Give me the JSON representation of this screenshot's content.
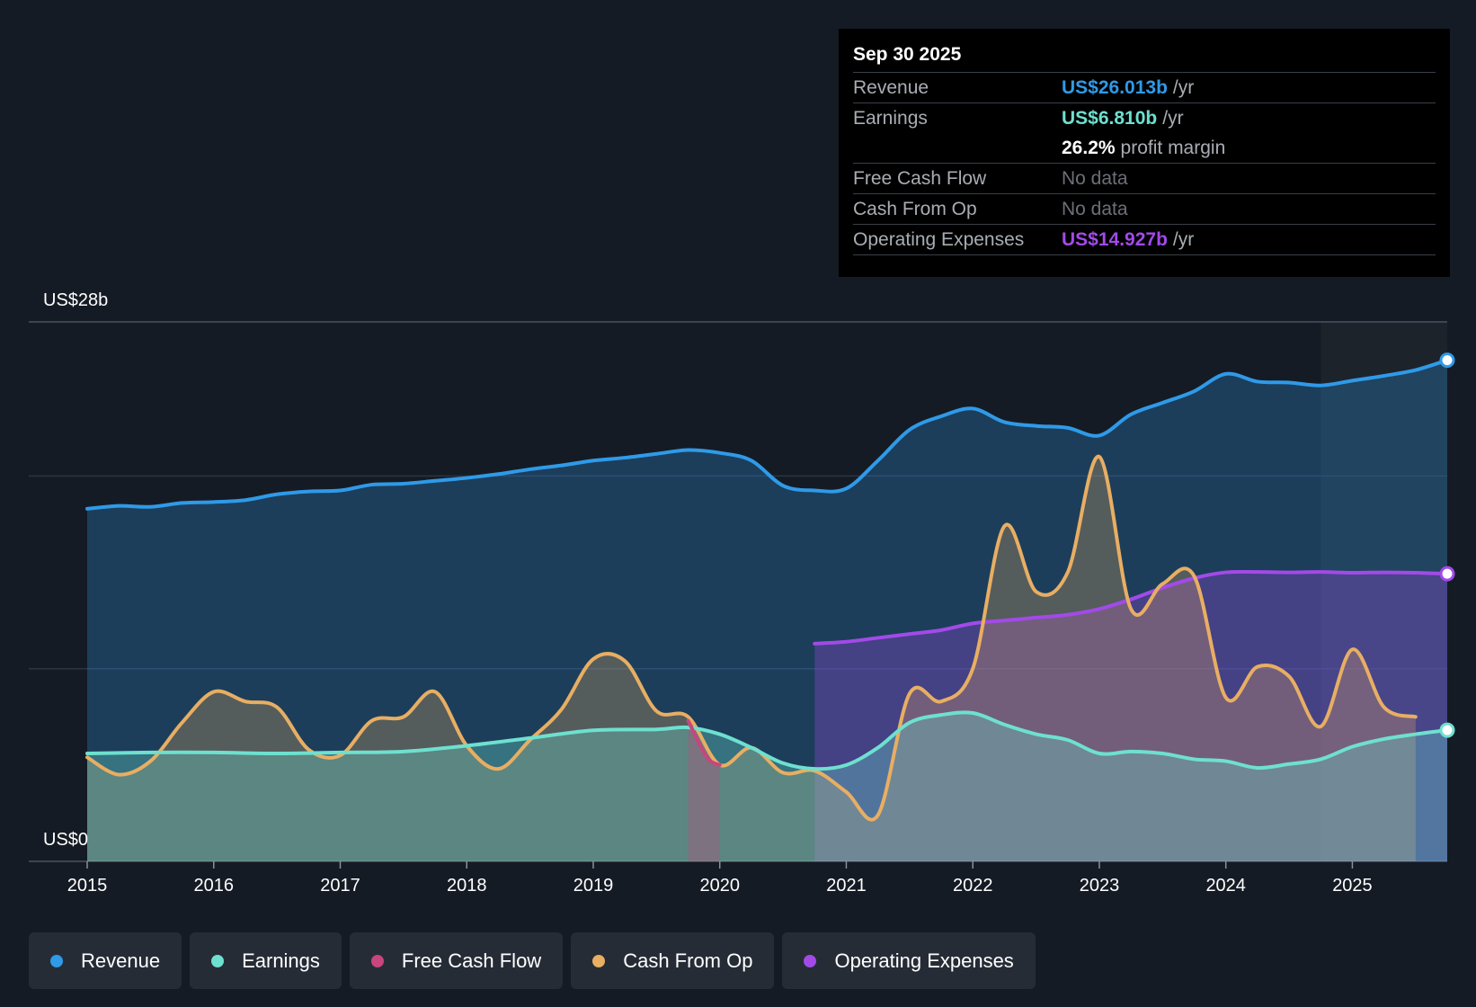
{
  "tooltip": {
    "date": "Sep 30 2025",
    "revenue_label": "Revenue",
    "revenue_value": "US$26.013b",
    "earnings_label": "Earnings",
    "earnings_value": "US$6.810b",
    "unit": "/yr",
    "margin_value": "26.2%",
    "margin_label": "profit margin",
    "fcf_label": "Free Cash Flow",
    "fcf_value": "No data",
    "cfo_label": "Cash From Op",
    "cfo_value": "No data",
    "opex_label": "Operating Expenses",
    "opex_value": "US$14.927b"
  },
  "legend": [
    {
      "label": "Revenue",
      "color": "#2f9ae8"
    },
    {
      "label": "Earnings",
      "color": "#6ee0cf"
    },
    {
      "label": "Free Cash Flow",
      "color": "#c8467d"
    },
    {
      "label": "Cash From Op",
      "color": "#e8ae62"
    },
    {
      "label": "Operating Expenses",
      "color": "#a24ae8"
    }
  ],
  "chart_data": {
    "type": "area",
    "ylabel_top": "US$28b",
    "ylabel_bottom": "US$0",
    "ylim": [
      0,
      28
    ],
    "xlim": [
      2015,
      2025.75
    ],
    "x_ticks": [
      "2015",
      "2016",
      "2017",
      "2018",
      "2019",
      "2020",
      "2021",
      "2022",
      "2023",
      "2024",
      "2025"
    ],
    "forecast_start": 2024.75,
    "series": [
      {
        "name": "Revenue",
        "color": "#2f9ae8",
        "x": [
          2015,
          2015.25,
          2015.5,
          2015.75,
          2016,
          2016.25,
          2016.5,
          2016.75,
          2017,
          2017.25,
          2017.5,
          2017.75,
          2018,
          2018.25,
          2018.5,
          2018.75,
          2019,
          2019.25,
          2019.5,
          2019.75,
          2020,
          2020.25,
          2020.5,
          2020.75,
          2021,
          2021.25,
          2021.5,
          2021.75,
          2022,
          2022.25,
          2022.5,
          2022.75,
          2023,
          2023.25,
          2023.5,
          2023.75,
          2024,
          2024.25,
          2024.5,
          2024.75,
          2025,
          2025.25,
          2025.5,
          2025.75
        ],
        "values": [
          18.3,
          18.45,
          18.4,
          18.6,
          18.65,
          18.75,
          19.05,
          19.2,
          19.25,
          19.55,
          19.6,
          19.75,
          19.9,
          20.1,
          20.35,
          20.55,
          20.8,
          20.95,
          21.15,
          21.35,
          21.2,
          20.8,
          19.5,
          19.25,
          19.35,
          20.8,
          22.4,
          23.1,
          23.5,
          22.8,
          22.6,
          22.5,
          22.1,
          23.2,
          23.8,
          24.4,
          25.3,
          24.9,
          24.85,
          24.7,
          24.95,
          25.2,
          25.5,
          26.013
        ]
      },
      {
        "name": "Earnings",
        "color": "#6ee0cf",
        "x": [
          2015,
          2015.5,
          2016,
          2016.5,
          2017,
          2017.5,
          2018,
          2018.5,
          2019,
          2019.5,
          2019.75,
          2020,
          2020.25,
          2020.5,
          2020.75,
          2021,
          2021.25,
          2021.5,
          2021.75,
          2022,
          2022.25,
          2022.5,
          2022.75,
          2023,
          2023.25,
          2023.5,
          2023.75,
          2024,
          2024.25,
          2024.5,
          2024.75,
          2025,
          2025.25,
          2025.5,
          2025.75
        ],
        "values": [
          5.6,
          5.65,
          5.65,
          5.6,
          5.65,
          5.7,
          6.0,
          6.4,
          6.8,
          6.85,
          6.95,
          6.6,
          5.9,
          5.1,
          4.8,
          5.0,
          5.9,
          7.2,
          7.6,
          7.7,
          7.1,
          6.6,
          6.3,
          5.6,
          5.7,
          5.6,
          5.3,
          5.2,
          4.85,
          5.05,
          5.3,
          5.95,
          6.35,
          6.6,
          6.81
        ]
      },
      {
        "name": "Free Cash Flow",
        "color": "#c8467d",
        "x": [
          2019.75,
          2019.9,
          2020
        ],
        "values": [
          7.3,
          5.4,
          5.0
        ]
      },
      {
        "name": "Cash From Op",
        "color": "#e8ae62",
        "x": [
          2015,
          2015.25,
          2015.5,
          2015.75,
          2016,
          2016.25,
          2016.5,
          2016.75,
          2017,
          2017.25,
          2017.5,
          2017.75,
          2018,
          2018.25,
          2018.5,
          2018.75,
          2019,
          2019.25,
          2019.5,
          2019.75,
          2020,
          2020.25,
          2020.5,
          2020.75,
          2021,
          2021.25,
          2021.5,
          2021.75,
          2022,
          2022.25,
          2022.5,
          2022.75,
          2023,
          2023.25,
          2023.5,
          2023.75,
          2024,
          2024.25,
          2024.5,
          2024.75,
          2025,
          2025.25,
          2025.5
        ],
        "values": [
          5.4,
          4.5,
          5.2,
          7.2,
          8.8,
          8.3,
          8.0,
          5.8,
          5.5,
          7.3,
          7.5,
          8.8,
          6.0,
          4.8,
          6.3,
          7.9,
          10.5,
          10.4,
          7.8,
          7.5,
          5.0,
          5.9,
          4.6,
          4.7,
          3.6,
          2.4,
          8.7,
          8.3,
          10.0,
          17.4,
          14.0,
          15.0,
          21.0,
          13.1,
          14.4,
          14.8,
          8.5,
          10.1,
          9.6,
          7.0,
          11.0,
          8.0,
          7.5
        ]
      },
      {
        "name": "Operating Expenses",
        "color": "#a24ae8",
        "x": [
          2020.75,
          2021,
          2021.25,
          2021.5,
          2021.75,
          2022,
          2022.25,
          2022.5,
          2022.75,
          2023,
          2023.25,
          2023.5,
          2023.75,
          2024,
          2024.25,
          2024.5,
          2024.75,
          2025,
          2025.25,
          2025.5,
          2025.75
        ],
        "values": [
          11.3,
          11.4,
          11.6,
          11.8,
          12.0,
          12.35,
          12.5,
          12.65,
          12.8,
          13.1,
          13.6,
          14.2,
          14.7,
          15.0,
          15.02,
          15.0,
          15.02,
          14.98,
          15.0,
          14.98,
          14.927
        ]
      }
    ]
  }
}
